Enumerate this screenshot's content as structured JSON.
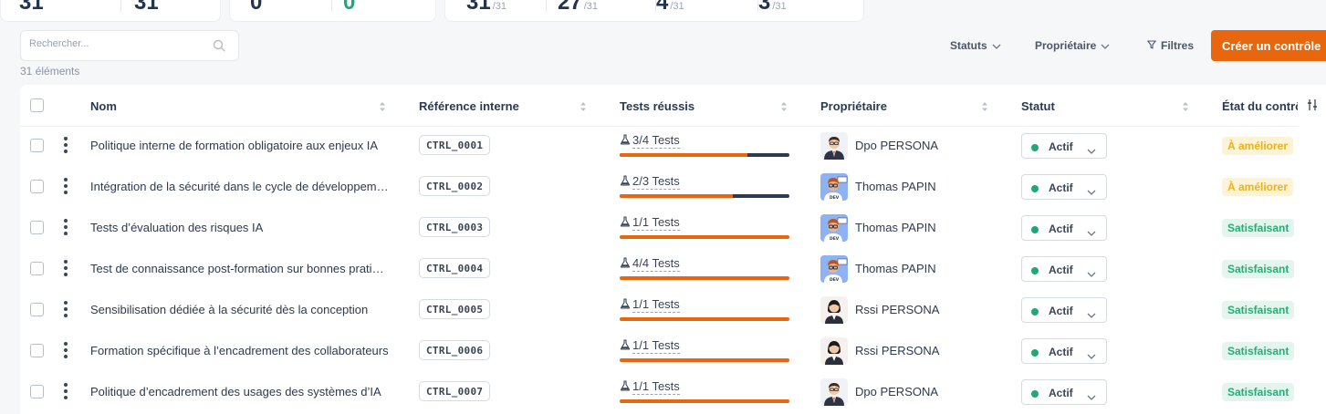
{
  "stats": {
    "card1": [
      "31",
      "31"
    ],
    "card2": [
      "0",
      "0"
    ],
    "card3": [
      {
        "value": "31",
        "total": "/31"
      },
      {
        "value": "27",
        "total": "/31"
      },
      {
        "value": "4",
        "total": "/31"
      },
      {
        "value": "3",
        "total": "/31"
      }
    ]
  },
  "search": {
    "placeholder": "Rechercher..."
  },
  "count_label": "31 éléments",
  "toolbar": {
    "statuts": "Statuts",
    "proprietaire": "Propriétaire",
    "filtres": "Filtres",
    "create": "Créer un contrôle"
  },
  "table": {
    "headers": {
      "nom": "Nom",
      "reference": "Référence interne",
      "tests": "Tests réussis",
      "proprietaire": "Propriétaire",
      "statut": "Statut",
      "etat": "État du contrôle"
    },
    "rows": [
      {
        "name": "Politique interne de formation obligatoire aux enjeux IA",
        "ref": "CTRL_0001",
        "tests": "3/4 Tests",
        "progress": 0.75,
        "owner": "Dpo PERSONA",
        "avatar": "dpo",
        "status": "Actif",
        "state": "À améliorer",
        "state_kind": "warn"
      },
      {
        "name": "Intégration de la sécurité dans le cycle de développement",
        "ref": "CTRL_0002",
        "tests": "2/3 Tests",
        "progress": 0.667,
        "owner": "Thomas PAPIN",
        "avatar": "dev",
        "status": "Actif",
        "state": "À améliorer",
        "state_kind": "warn"
      },
      {
        "name": "Tests d’évaluation des risques IA",
        "ref": "CTRL_0003",
        "tests": "1/1 Tests",
        "progress": 1,
        "owner": "Thomas PAPIN",
        "avatar": "dev",
        "status": "Actif",
        "state": "Satisfaisant",
        "state_kind": "ok"
      },
      {
        "name": "Test de connaissance post-formation sur bonnes pratiques",
        "ref": "CTRL_0004",
        "tests": "4/4 Tests",
        "progress": 1,
        "owner": "Thomas PAPIN",
        "avatar": "dev",
        "status": "Actif",
        "state": "Satisfaisant",
        "state_kind": "ok"
      },
      {
        "name": "Sensibilisation dédiée à la sécurité dès la conception",
        "ref": "CTRL_0005",
        "tests": "1/1 Tests",
        "progress": 1,
        "owner": "Rssi PERSONA",
        "avatar": "rssi",
        "status": "Actif",
        "state": "Satisfaisant",
        "state_kind": "ok"
      },
      {
        "name": "Formation spécifique à l’encadrement des collaborateurs",
        "ref": "CTRL_0006",
        "tests": "1/1 Tests",
        "progress": 1,
        "owner": "Rssi PERSONA",
        "avatar": "rssi",
        "status": "Actif",
        "state": "Satisfaisant",
        "state_kind": "ok"
      },
      {
        "name": "Politique d’encadrement des usages des systèmes d’IA",
        "ref": "CTRL_0007",
        "tests": "1/1 Tests",
        "progress": 1,
        "owner": "Dpo PERSONA",
        "avatar": "dpo",
        "status": "Actif",
        "state": "Satisfaisant",
        "state_kind": "ok"
      }
    ]
  },
  "colors": {
    "accent": "#e8660d",
    "success": "#1fa875",
    "warning": "#f0b216",
    "bar_track": "#2e3a4f"
  },
  "icons": {
    "search": "search-icon",
    "chevron": "chevron-down-icon",
    "filter": "filter-icon",
    "sort": "sort-icon",
    "columns": "column-settings-icon",
    "flask": "flask-icon",
    "more": "more-vertical-icon"
  }
}
